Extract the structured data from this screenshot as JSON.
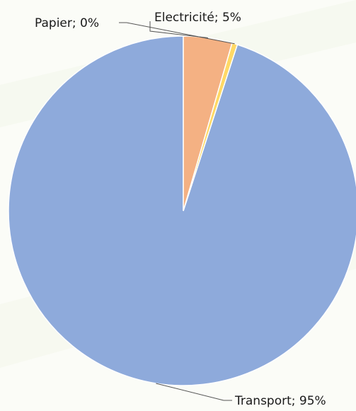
{
  "chart_data": {
    "type": "pie",
    "title": "",
    "categories": [
      "Transport",
      "Papier",
      "Electricité"
    ],
    "values": [
      95,
      0.5,
      4.5
    ],
    "labels": [
      "Transport; 95%",
      "Papier; 0%",
      "Electricité; 5%"
    ],
    "colors": [
      "#8eaadb",
      "#ffd966",
      "#f4b183"
    ],
    "start_angle_deg": 0,
    "direction": "counterclockwise",
    "legend": "none"
  }
}
